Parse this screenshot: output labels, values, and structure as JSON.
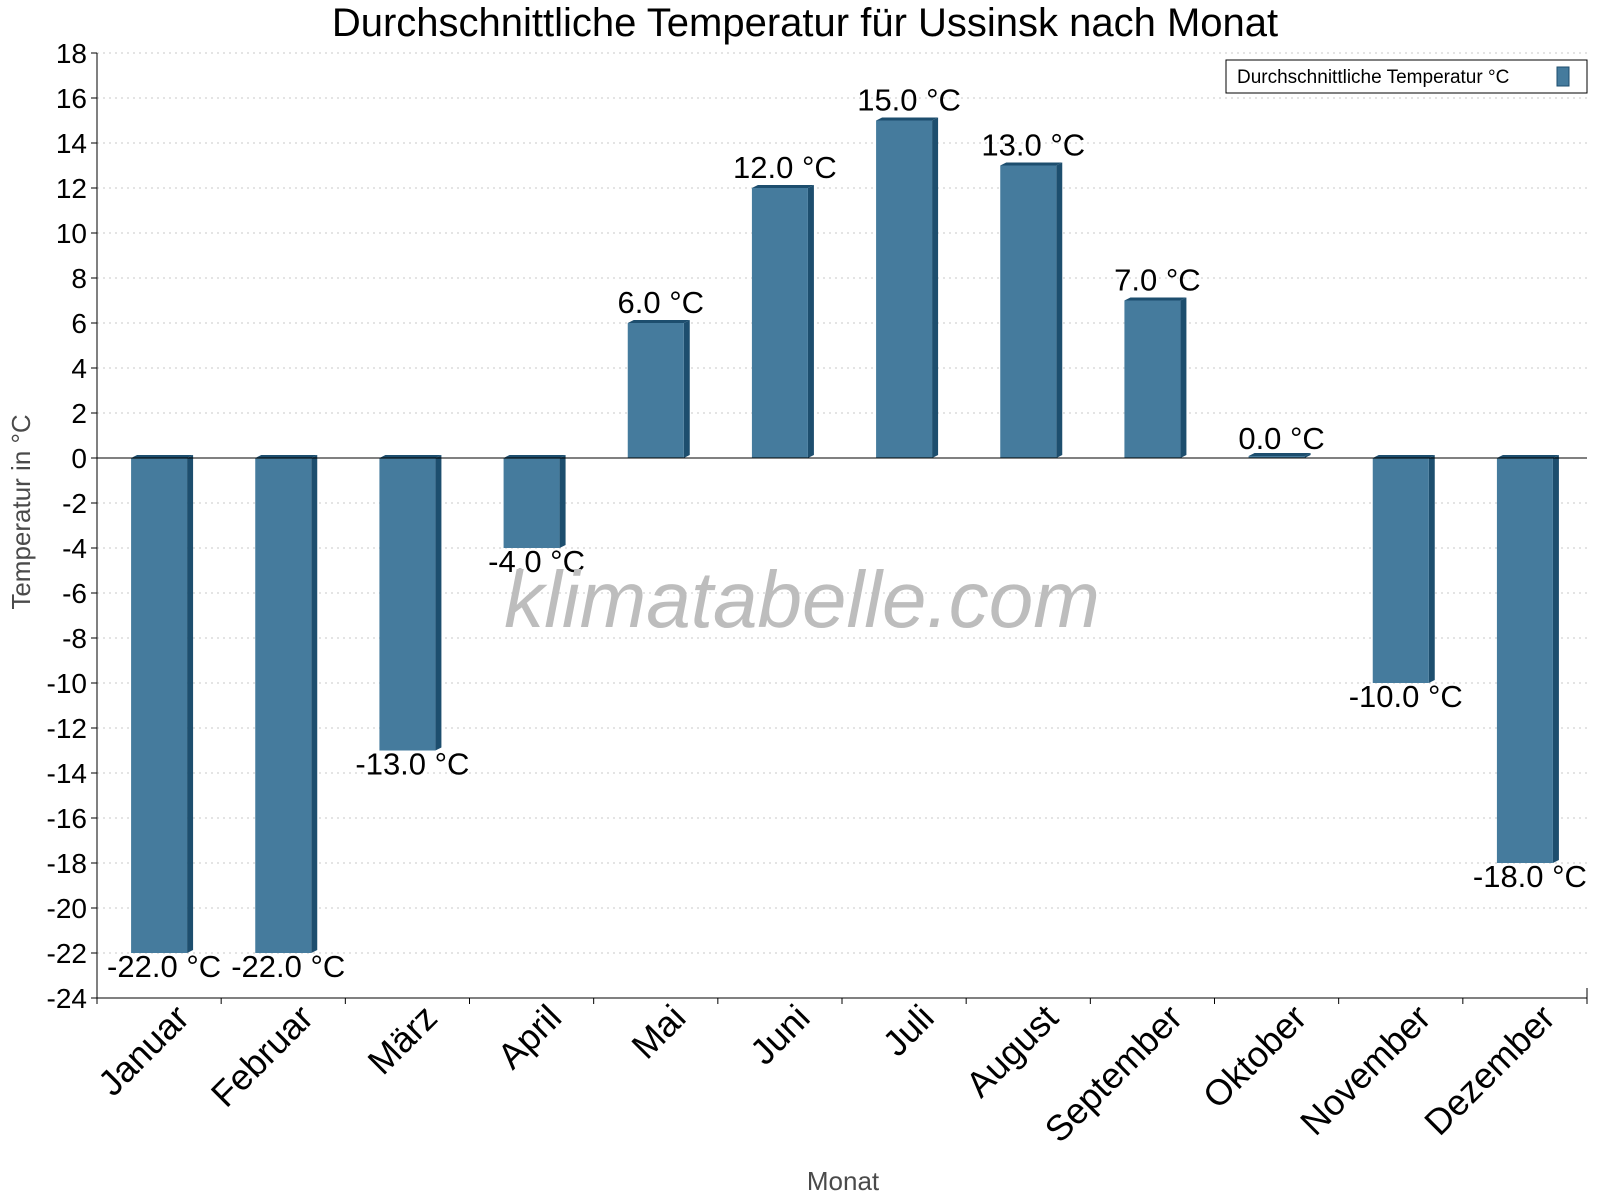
{
  "chart_data": {
    "type": "bar",
    "title": "Durchschnittliche Temperatur für Ussinsk nach Monat",
    "xlabel": "Monat",
    "ylabel": "Temperatur in °C",
    "categories": [
      "Januar",
      "Februar",
      "März",
      "April",
      "Mai",
      "Juni",
      "Juli",
      "August",
      "September",
      "Oktober",
      "November",
      "Dezember"
    ],
    "series": [
      {
        "name": "Durchschnittliche Temperatur °C",
        "values": [
          -22.0,
          -22.0,
          -13.0,
          -4.0,
          6.0,
          12.0,
          15.0,
          13.0,
          7.0,
          0.0,
          -10.0,
          -18.0
        ],
        "labels": [
          "-22.0 °C",
          "-22.0 °C",
          "-13.0 °C",
          "-4.0 °C",
          "6.0 °C",
          "12.0 °C",
          "15.0 °C",
          "13.0 °C",
          "7.0 °C",
          "0.0 °C",
          "-10.0 °C",
          "-18.0 °C"
        ],
        "color": "#457b9d",
        "side_color": "#1d4e6e"
      }
    ],
    "ylim": [
      -24,
      18
    ],
    "ytick_step": 2,
    "grid": true,
    "legend_position": "top-right",
    "watermark": "klimatabelle.com"
  }
}
